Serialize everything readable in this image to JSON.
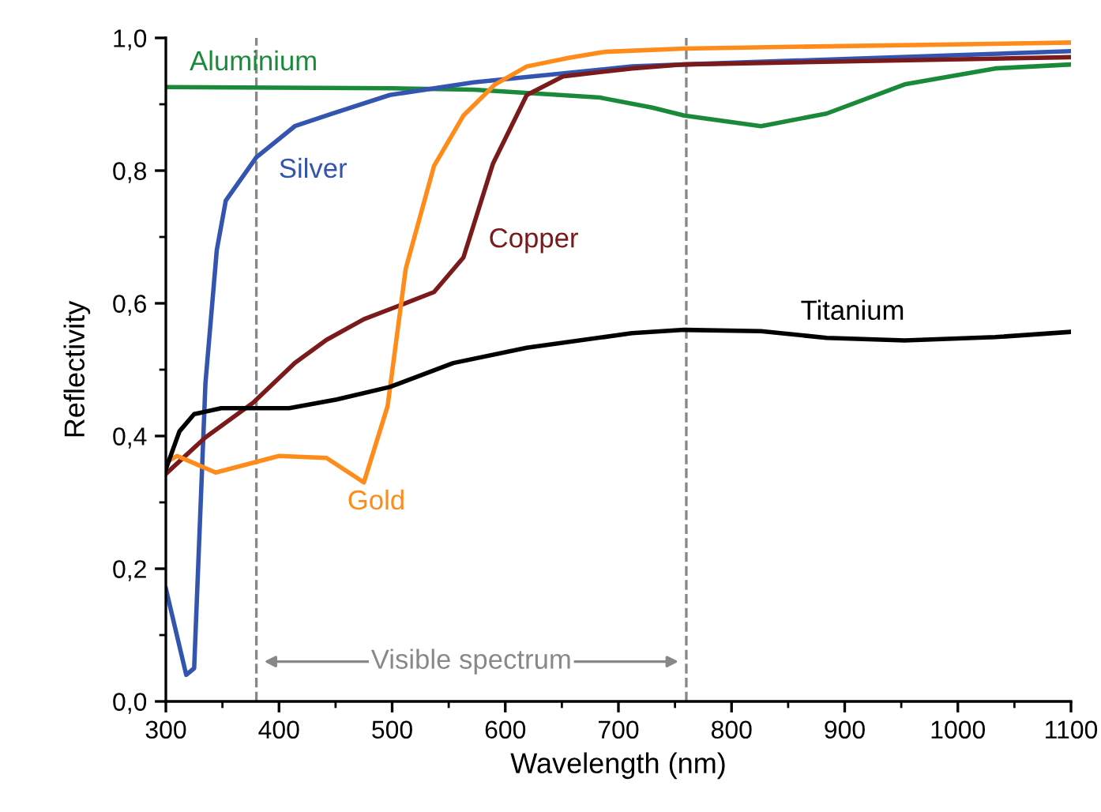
{
  "chart_data": {
    "type": "line",
    "xlabel": "Wavelength (nm)",
    "ylabel": "Reflectivity",
    "xlim": [
      300,
      1100
    ],
    "ylim": [
      0,
      1.0
    ],
    "xticks": [
      300,
      400,
      500,
      600,
      700,
      800,
      900,
      1000,
      1100
    ],
    "yticks": [
      {
        "value": 0.0,
        "label": "0,0"
      },
      {
        "value": 0.2,
        "label": "0,2"
      },
      {
        "value": 0.4,
        "label": "0,4"
      },
      {
        "value": 0.6,
        "label": "0,6"
      },
      {
        "value": 0.8,
        "label": "0,8"
      },
      {
        "value": 1.0,
        "label": "1,0"
      }
    ],
    "grid": false,
    "legend": false,
    "marker": "none",
    "line_style": "solid",
    "series": [
      {
        "name": "Aluminium",
        "color": "#1a8a3a",
        "x": [
          300,
          400,
          500,
          572,
          640,
          684,
          730,
          758,
          826,
          884,
          953,
          1033,
          1100
        ],
        "values": [
          0.926,
          0.925,
          0.924,
          0.922,
          0.915,
          0.91,
          0.895,
          0.883,
          0.867,
          0.886,
          0.93,
          0.954,
          0.96
        ]
      },
      {
        "name": "Silver",
        "color": "#3355b0",
        "x": [
          300,
          318,
          325,
          335,
          345,
          353,
          380,
          414,
          447,
          498,
          572,
          712,
          758,
          1100
        ],
        "values": [
          0.17,
          0.04,
          0.05,
          0.48,
          0.68,
          0.755,
          0.82,
          0.867,
          0.886,
          0.914,
          0.933,
          0.957,
          0.96,
          0.98
        ]
      },
      {
        "name": "Copper",
        "color": "#7a1a1a",
        "x": [
          300,
          335,
          377,
          414,
          442,
          475,
          507,
          537,
          563,
          589,
          619,
          651,
          712,
          758,
          1100
        ],
        "values": [
          0.343,
          0.398,
          0.45,
          0.51,
          0.545,
          0.576,
          0.597,
          0.617,
          0.669,
          0.81,
          0.914,
          0.942,
          0.954,
          0.96,
          0.971
        ]
      },
      {
        "name": "Gold",
        "color": "#ff8c1a",
        "x": [
          300,
          310,
          344,
          400,
          442,
          475,
          496,
          512,
          537,
          563,
          591,
          619,
          656,
          688,
          758,
          1100
        ],
        "values": [
          0.36,
          0.37,
          0.345,
          0.37,
          0.367,
          0.33,
          0.445,
          0.652,
          0.807,
          0.883,
          0.93,
          0.957,
          0.97,
          0.979,
          0.984,
          0.993
        ]
      },
      {
        "name": "Titanium",
        "color": "#000000",
        "x": [
          300,
          312,
          325,
          349,
          409,
          451,
          498,
          554,
          619,
          712,
          758,
          826,
          884,
          953,
          1033,
          1100
        ],
        "values": [
          0.35,
          0.407,
          0.433,
          0.442,
          0.442,
          0.455,
          0.474,
          0.51,
          0.533,
          0.555,
          0.56,
          0.558,
          0.548,
          0.544,
          0.549,
          0.557
        ]
      }
    ],
    "ref_lines": [
      {
        "axis": "x",
        "value": 380,
        "color": "#888888",
        "line_style": "dashed"
      },
      {
        "axis": "x",
        "value": 760,
        "color": "#888888",
        "line_style": "dashed"
      }
    ],
    "annotations": [
      "Visible spectrum"
    ]
  }
}
